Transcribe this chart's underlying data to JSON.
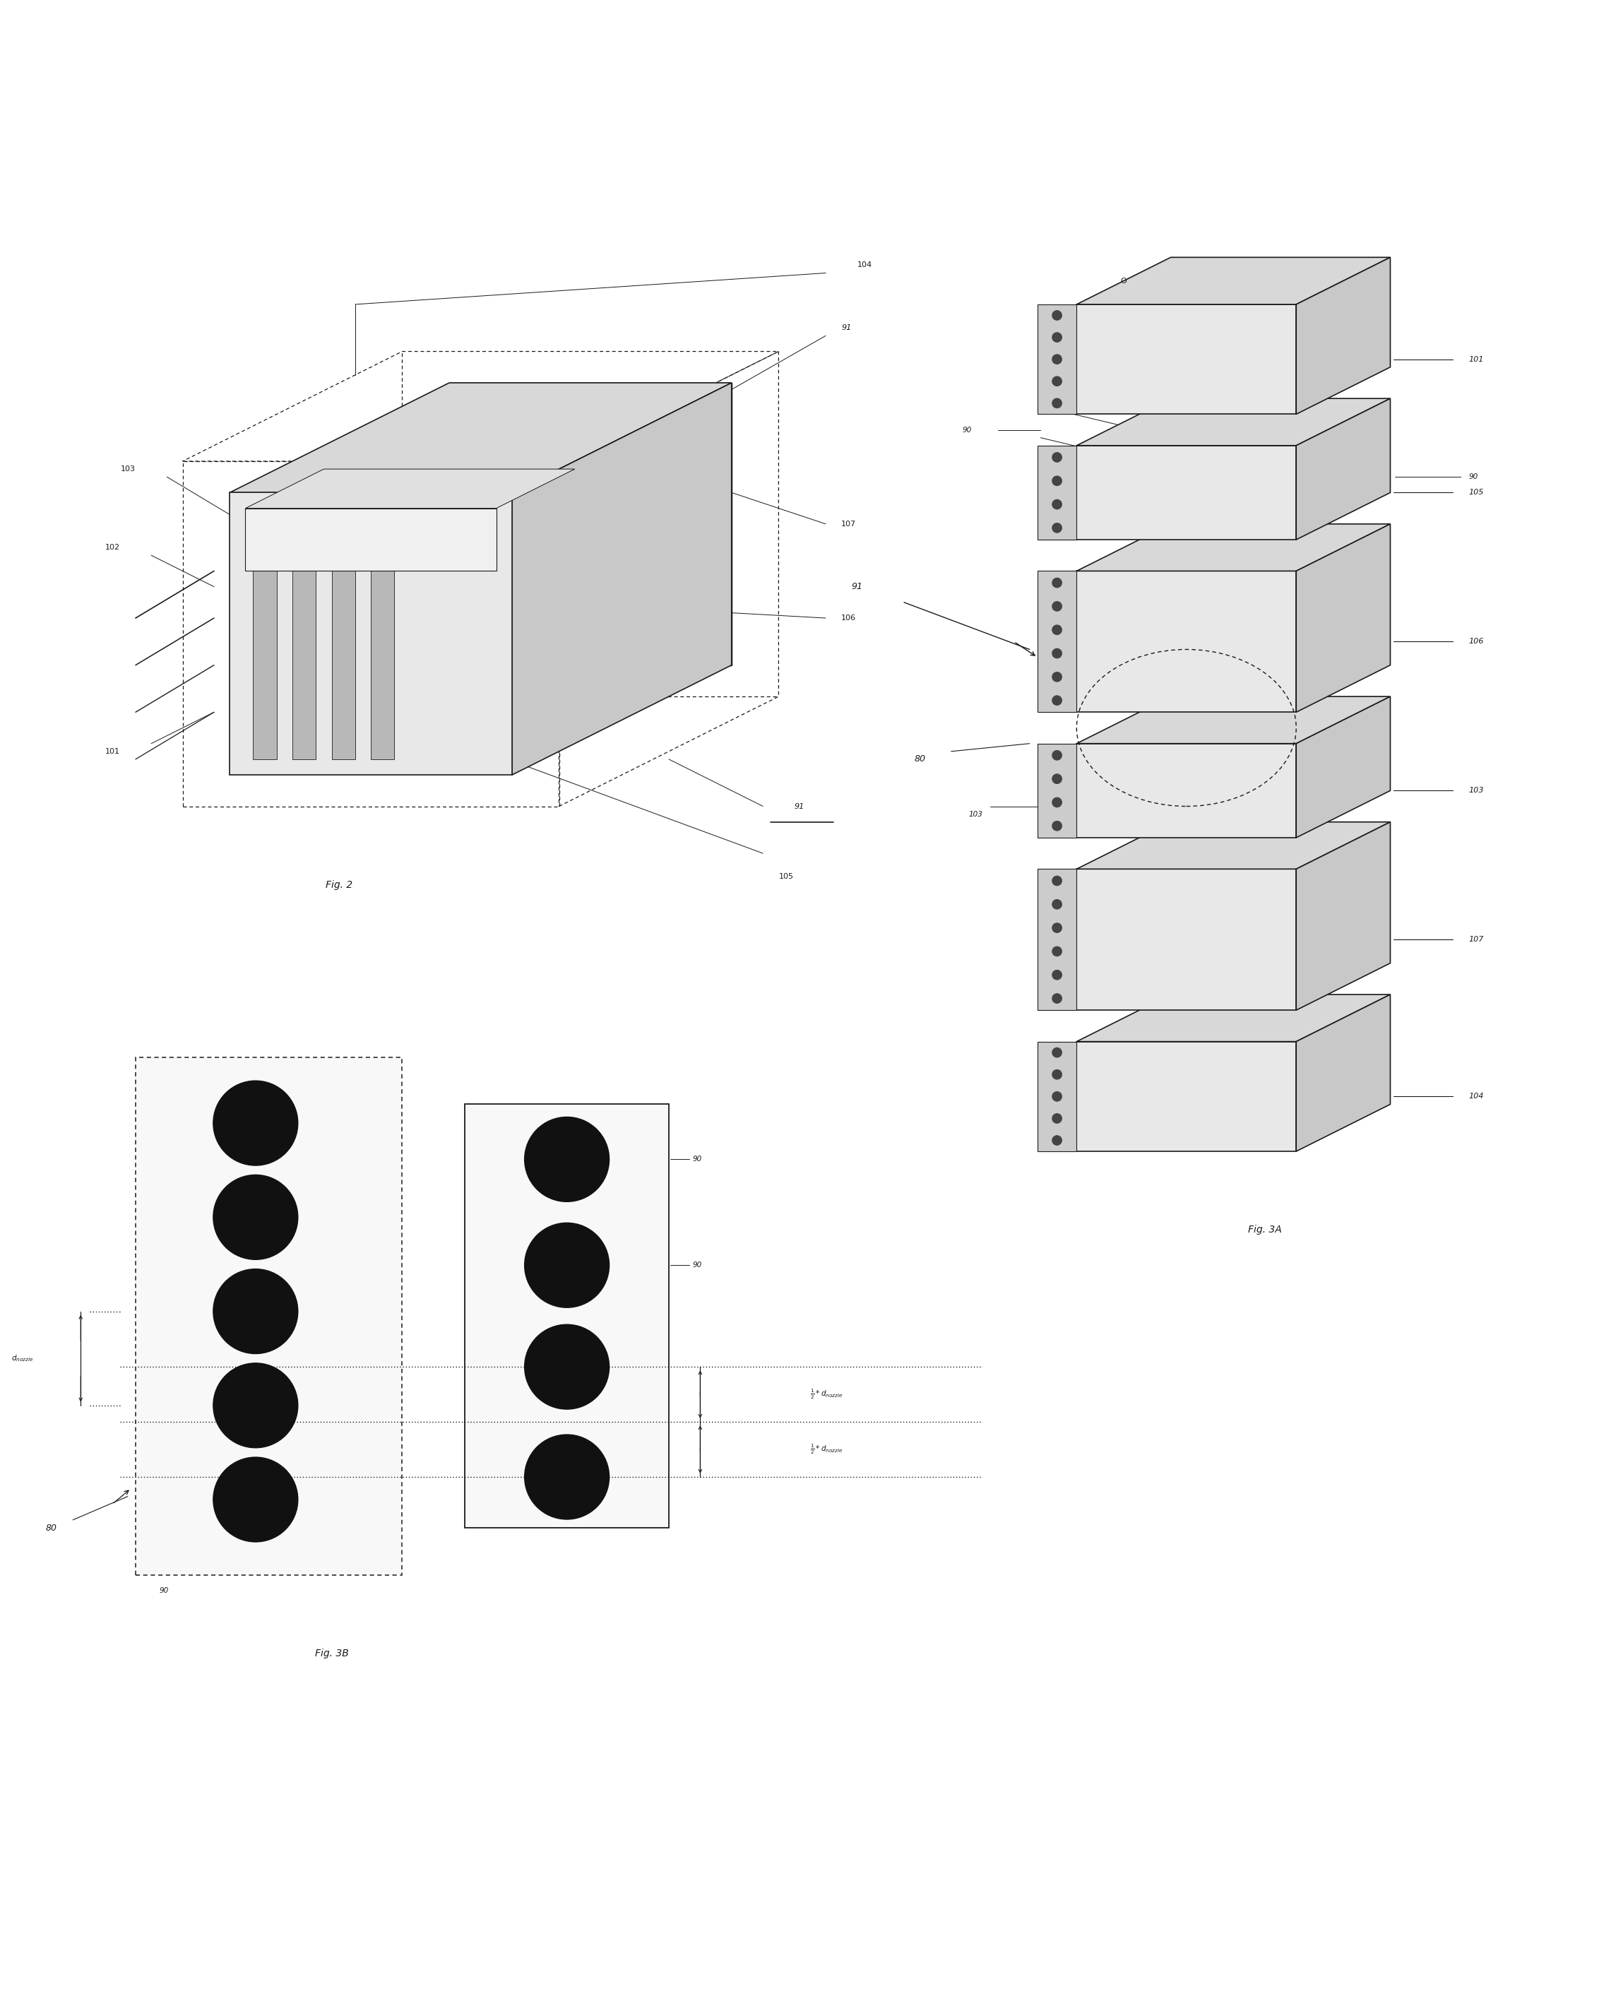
{
  "bg_color": "#ffffff",
  "fig_width": 22.71,
  "fig_height": 28.16,
  "line_color": "#1a1a1a",
  "fig2_label": "Fig. 2",
  "fig3a_label": "Fig. 3A",
  "fig3b_label": "Fig. 3B"
}
